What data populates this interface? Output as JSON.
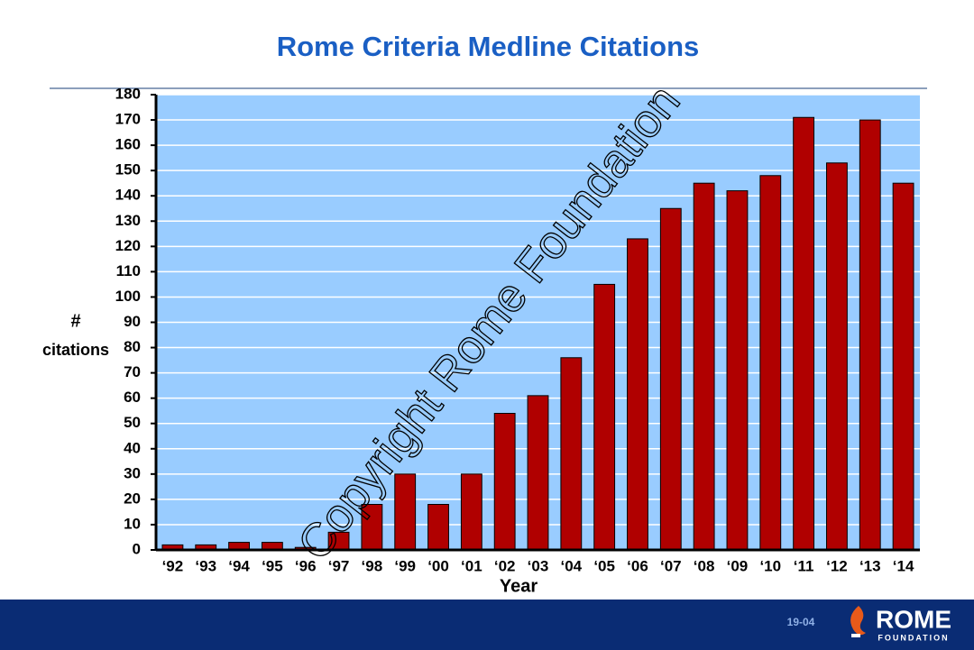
{
  "chart_data": {
    "type": "bar",
    "title": "Rome Criteria Medline Citations",
    "ylabel": [
      "#",
      "citations"
    ],
    "xlabel": "Year",
    "categories": [
      "‘92",
      "‘93",
      "‘94",
      "‘95",
      "‘96",
      "‘97",
      "‘98",
      "‘99",
      "‘00",
      "‘01",
      "‘02",
      "‘03",
      "‘04",
      "‘05",
      "‘06",
      "‘07",
      "‘08",
      "‘09",
      "‘10",
      "‘11",
      "‘12",
      "‘13",
      "‘14"
    ],
    "values": [
      2,
      2,
      3,
      3,
      1,
      7,
      18,
      30,
      18,
      30,
      54,
      61,
      76,
      105,
      123,
      135,
      145,
      142,
      148,
      171,
      153,
      170,
      145
    ],
    "color": "#b00000",
    "background": "#99ccff",
    "ylim": [
      0,
      180
    ],
    "yticks": [
      0,
      10,
      20,
      30,
      40,
      50,
      60,
      70,
      80,
      90,
      100,
      110,
      120,
      130,
      140,
      150,
      160,
      170,
      180
    ],
    "grid": true
  },
  "watermark": "Copyright Rome Foundation",
  "footer": {
    "slide_number": "19-04",
    "logo": "ROME",
    "logo_sub": "FOUNDATION"
  }
}
